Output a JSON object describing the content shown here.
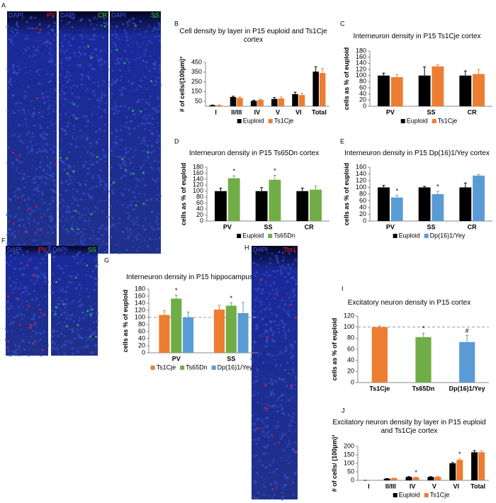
{
  "images": [
    {
      "panel": "A",
      "strips": [
        {
          "labels": [
            "DAPI",
            "PV"
          ],
          "color": "#ff2020"
        },
        {
          "labels": [
            "DAPI",
            "CR"
          ],
          "color": "#30e030"
        },
        {
          "labels": [
            "DAPI",
            "SS"
          ],
          "color": "#30e030"
        }
      ]
    },
    {
      "panel": "F",
      "strips": [
        {
          "labels": [
            "DAPI",
            "PV"
          ],
          "color": "#ff2020"
        },
        {
          "labels": [
            "DAPI",
            "SS"
          ],
          "color": "#30e030"
        }
      ]
    },
    {
      "panel": "H",
      "strips": [
        {
          "labels": [
            "DAPI",
            "Tbr1"
          ],
          "color": "#ff2020"
        }
      ]
    }
  ],
  "chart_data": [
    {
      "type": "bar",
      "panel": "B",
      "title": "Cell density by layer in P15 euploid and Ts1Cje cortex",
      "y_label": "# of cells/(100µm)³",
      "categories": [
        "I",
        "II/III",
        "IV",
        "V",
        "VI",
        "Total"
      ],
      "series": [
        {
          "name": "Euploid",
          "color": "#000000",
          "values": [
            10,
            95,
            55,
            75,
            125,
            355
          ],
          "errors": [
            3,
            8,
            8,
            15,
            20,
            50
          ]
        },
        {
          "name": "Ts1Cje",
          "color": "#ed7d31",
          "values": [
            10,
            85,
            65,
            80,
            115,
            340
          ],
          "errors": [
            3,
            10,
            8,
            15,
            18,
            45
          ]
        }
      ],
      "ylim": [
        0,
        450
      ],
      "yticks": [
        50,
        150,
        250,
        350,
        450
      ]
    },
    {
      "type": "bar",
      "panel": "C",
      "title": "Interneuron density in P15 Ts1Cje cortex",
      "y_label": "cells as % of euploid",
      "categories": [
        "PV",
        "SS",
        "CR"
      ],
      "series": [
        {
          "name": "Euploid",
          "color": "#000000",
          "values": [
            100,
            100,
            100
          ],
          "errors": [
            8,
            28,
            15
          ]
        },
        {
          "name": "Ts1Cje",
          "color": "#ed7d31",
          "values": [
            95,
            130,
            105
          ],
          "errors": [
            8,
            5,
            15
          ]
        }
      ],
      "ylim": [
        0,
        180
      ],
      "yticks": [
        0,
        20,
        40,
        60,
        80,
        100,
        120,
        140,
        160,
        180
      ]
    },
    {
      "type": "bar",
      "panel": "D",
      "title": "Interneuron density in P15 Ts65Dn cortex",
      "y_label": "cells as % of euploid",
      "categories": [
        "PV",
        "SS",
        "CR"
      ],
      "series": [
        {
          "name": "Euploid",
          "color": "#000000",
          "values": [
            100,
            100,
            100
          ],
          "errors": [
            10,
            12,
            10
          ]
        },
        {
          "name": "Ts65Dn",
          "color": "#70ad47",
          "values": [
            143,
            138,
            105
          ],
          "errors": [
            8,
            15,
            12
          ],
          "marks": [
            "*",
            "*",
            null
          ]
        }
      ],
      "ylim": [
        0,
        180
      ],
      "yticks": [
        0,
        20,
        40,
        60,
        80,
        100,
        120,
        140,
        160,
        180
      ]
    },
    {
      "type": "bar",
      "panel": "E",
      "title": "Interneuron density in P15 Dp(16)1/Yey cortex",
      "y_label": "cells as % of euploid",
      "categories": [
        "PV",
        "SS",
        "CR"
      ],
      "series": [
        {
          "name": "Euploid",
          "color": "#000000",
          "values": [
            100,
            100,
            100
          ],
          "errors": [
            6,
            3,
            13
          ]
        },
        {
          "name": "Dp(16)1/Yey",
          "color": "#5b9bd5",
          "values": [
            70,
            80,
            135
          ],
          "errors": [
            6,
            8,
            3
          ],
          "marks": [
            "*",
            "*",
            null
          ]
        }
      ],
      "ylim": [
        0,
        160
      ],
      "yticks": [
        0,
        20,
        40,
        60,
        80,
        100,
        120,
        140,
        160
      ]
    },
    {
      "type": "bar",
      "panel": "G",
      "title": "Interneuron density in P15 hippocampus",
      "y_label": "cells as % of euploid",
      "categories": [
        "PV",
        "SS"
      ],
      "reference_line": 100,
      "series": [
        {
          "name": "Ts1Cje",
          "color": "#ed7d31",
          "values": [
            107,
            122
          ],
          "errors": [
            12,
            12
          ]
        },
        {
          "name": "Ts65Dn",
          "color": "#70ad47",
          "values": [
            153,
            133
          ],
          "errors": [
            10,
            8
          ],
          "marks": [
            "*",
            "*"
          ]
        },
        {
          "name": "Dp(16)1/Yey",
          "color": "#5b9bd5",
          "values": [
            100,
            112
          ],
          "errors": [
            15,
            30
          ]
        }
      ],
      "ylim": [
        0,
        180
      ],
      "yticks": [
        0,
        20,
        40,
        60,
        80,
        100,
        120,
        140,
        160,
        180
      ]
    },
    {
      "type": "bar",
      "panel": "I",
      "title": "Excitatory neuron density in P15 cortex",
      "y_label": "cells as % of euploid",
      "categories": [
        "Ts1Cje",
        "Ts65Dn",
        "Dp(16)1/Yey"
      ],
      "reference_line": 100,
      "series": [
        {
          "colors": [
            "#ed7d31",
            "#70ad47",
            "#5b9bd5"
          ],
          "values": [
            100,
            82,
            73
          ],
          "errors": [
            2,
            7,
            12
          ],
          "marks": [
            null,
            "*",
            "#"
          ]
        }
      ],
      "ylim": [
        0,
        120
      ],
      "yticks": [
        0,
        20,
        40,
        60,
        80,
        100,
        120
      ]
    },
    {
      "type": "bar",
      "panel": "J",
      "title": "Excitatory neuron density by layer in P15 euploid and Ts1Cje cortex",
      "y_label": "# of cells/ (100µm)³",
      "categories": [
        "I",
        "II/III",
        "IV",
        "V",
        "VI",
        "Total"
      ],
      "series": [
        {
          "name": "Euploid",
          "color": "#000000",
          "values": [
            0,
            10,
            20,
            20,
            100,
            165
          ],
          "errors": [
            0,
            1,
            2,
            2,
            5,
            10
          ]
        },
        {
          "name": "Ts1Cje",
          "color": "#ed7d31",
          "values": [
            0,
            12,
            17,
            20,
            120,
            165
          ],
          "errors": [
            0,
            1,
            2,
            2,
            6,
            8
          ],
          "marks": [
            null,
            null,
            "*",
            null,
            "*",
            null
          ]
        }
      ],
      "ylim": [
        0,
        200
      ],
      "yticks": [
        0,
        50,
        100,
        150,
        200
      ]
    }
  ]
}
